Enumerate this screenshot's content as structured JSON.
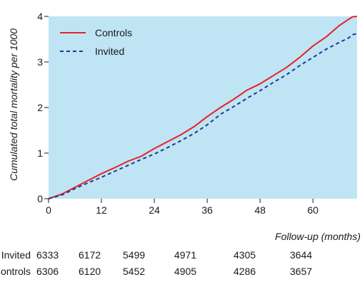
{
  "chart_data": {
    "type": "line",
    "xlabel": "Follow-up (months)",
    "ylabel": "Cumulated total mortality per 1000",
    "xlim": [
      0,
      70
    ],
    "ylim": [
      0,
      4
    ],
    "xticks": [
      "0",
      "12",
      "24",
      "36",
      "48",
      "60"
    ],
    "yticks": [
      "0",
      "1",
      "2",
      "3",
      "4"
    ],
    "background": "#bfe4f4",
    "legend_position": "top-left",
    "series": [
      {
        "name": "Controls",
        "color": "#e8202a",
        "style": "solid",
        "x": [
          0,
          3,
          6,
          9,
          12,
          15,
          18,
          21,
          24,
          27,
          30,
          33,
          36,
          39,
          42,
          45,
          48,
          51,
          54,
          57,
          60,
          63,
          66,
          68,
          69,
          70
        ],
        "y": [
          0,
          0.1,
          0.25,
          0.4,
          0.55,
          0.68,
          0.82,
          0.93,
          1.1,
          1.25,
          1.4,
          1.58,
          1.8,
          2.0,
          2.18,
          2.38,
          2.52,
          2.7,
          2.88,
          3.1,
          3.35,
          3.55,
          3.8,
          3.93,
          3.99,
          4.0
        ]
      },
      {
        "name": "Invited",
        "color": "#1f3a93",
        "style": "dashed",
        "x": [
          0,
          3,
          6,
          9,
          12,
          15,
          18,
          21,
          24,
          27,
          30,
          33,
          36,
          39,
          42,
          45,
          48,
          51,
          54,
          57,
          60,
          63,
          66,
          68,
          69,
          70
        ],
        "y": [
          0,
          0.08,
          0.22,
          0.35,
          0.47,
          0.6,
          0.73,
          0.86,
          0.98,
          1.12,
          1.27,
          1.43,
          1.62,
          1.85,
          2.02,
          2.2,
          2.37,
          2.55,
          2.72,
          2.92,
          3.1,
          3.28,
          3.43,
          3.52,
          3.6,
          3.62
        ]
      }
    ],
    "risk_table": {
      "rows": [
        {
          "label": "Invited",
          "values": [
            "6333",
            "6172",
            "5499",
            "4971",
            "4305",
            "3644"
          ]
        },
        {
          "label": "Controls",
          "values": [
            "6306",
            "6120",
            "5452",
            "4905",
            "4286",
            "3657"
          ]
        }
      ]
    }
  }
}
